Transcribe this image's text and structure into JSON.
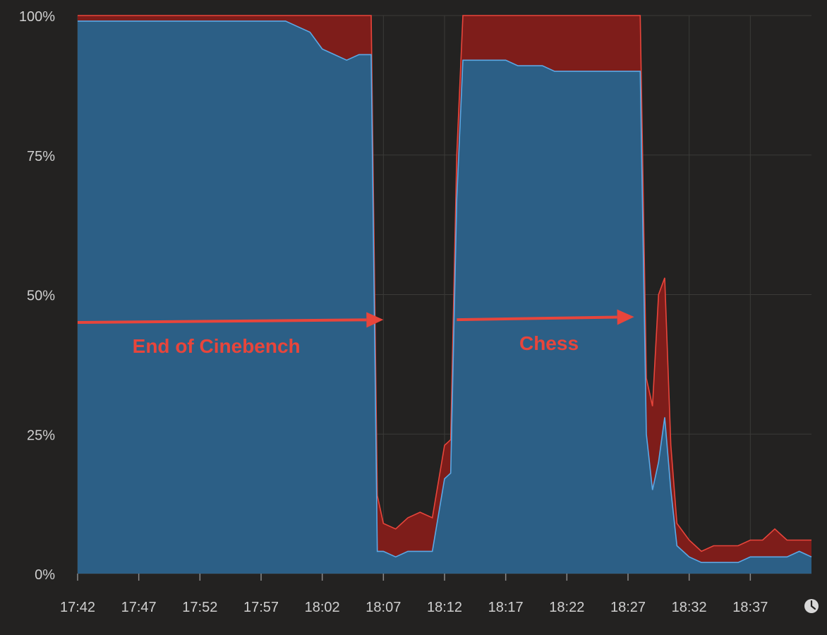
{
  "chart_data": {
    "type": "area",
    "title": "",
    "xlabel": "",
    "ylabel": "",
    "x_ticks": [
      "17:42",
      "17:47",
      "17:52",
      "17:57",
      "18:02",
      "18:07",
      "18:12",
      "18:17",
      "18:22",
      "18:27",
      "18:32",
      "18:37"
    ],
    "y_ticks": [
      "0%",
      "25%",
      "50%",
      "75%",
      "100%"
    ],
    "x_range": [
      "17:42",
      "18:42"
    ],
    "ylim": [
      0,
      100
    ],
    "grid": true,
    "stacked": true,
    "series": [
      {
        "color": "#2c5f86",
        "line_color": "#5aa9e6",
        "points": [
          [
            "17:42",
            99
          ],
          [
            "17:43",
            99
          ],
          [
            "17:44",
            99
          ],
          [
            "17:45",
            99
          ],
          [
            "17:46",
            99
          ],
          [
            "17:47",
            99
          ],
          [
            "17:48",
            99
          ],
          [
            "17:49",
            99
          ],
          [
            "17:50",
            99
          ],
          [
            "17:51",
            99
          ],
          [
            "17:52",
            99
          ],
          [
            "17:53",
            99
          ],
          [
            "17:54",
            99
          ],
          [
            "17:55",
            99
          ],
          [
            "17:56",
            99
          ],
          [
            "17:57",
            99
          ],
          [
            "17:58",
            99
          ],
          [
            "17:59",
            99
          ],
          [
            "18:00",
            98
          ],
          [
            "18:01",
            97
          ],
          [
            "18:02",
            94
          ],
          [
            "18:03",
            93
          ],
          [
            "18:04",
            92
          ],
          [
            "18:05",
            93
          ],
          [
            "18:06",
            93
          ],
          [
            "18:06.5",
            4
          ],
          [
            "18:07",
            4
          ],
          [
            "18:08",
            3
          ],
          [
            "18:09",
            4
          ],
          [
            "18:10",
            4
          ],
          [
            "18:11",
            4
          ],
          [
            "18:12",
            17
          ],
          [
            "18:12.5",
            18
          ],
          [
            "18:13",
            67
          ],
          [
            "18:13.5",
            92
          ],
          [
            "18:14",
            92
          ],
          [
            "18:15",
            92
          ],
          [
            "18:16",
            92
          ],
          [
            "18:17",
            92
          ],
          [
            "18:18",
            91
          ],
          [
            "18:19",
            91
          ],
          [
            "18:20",
            91
          ],
          [
            "18:21",
            90
          ],
          [
            "18:22",
            90
          ],
          [
            "18:23",
            90
          ],
          [
            "18:24",
            90
          ],
          [
            "18:25",
            90
          ],
          [
            "18:26",
            90
          ],
          [
            "18:27",
            90
          ],
          [
            "18:28",
            90
          ],
          [
            "18:28.5",
            25
          ],
          [
            "18:29",
            15
          ],
          [
            "18:29.5",
            20
          ],
          [
            "18:30",
            28
          ],
          [
            "18:30.5",
            15
          ],
          [
            "18:31",
            5
          ],
          [
            "18:32",
            3
          ],
          [
            "18:33",
            2
          ],
          [
            "18:34",
            2
          ],
          [
            "18:35",
            2
          ],
          [
            "18:36",
            2
          ],
          [
            "18:37",
            3
          ],
          [
            "18:38",
            3
          ],
          [
            "18:39",
            3
          ],
          [
            "18:40",
            3
          ],
          [
            "18:41",
            4
          ],
          [
            "18:42",
            3
          ]
        ]
      },
      {
        "color": "#7e1d1a",
        "line_color": "#e8453b",
        "points": [
          [
            "17:42",
            1
          ],
          [
            "17:43",
            1
          ],
          [
            "17:44",
            1
          ],
          [
            "17:45",
            1
          ],
          [
            "17:46",
            1
          ],
          [
            "17:47",
            1
          ],
          [
            "17:48",
            1
          ],
          [
            "17:49",
            1
          ],
          [
            "17:50",
            1
          ],
          [
            "17:51",
            1
          ],
          [
            "17:52",
            1
          ],
          [
            "17:53",
            1
          ],
          [
            "17:54",
            1
          ],
          [
            "17:55",
            1
          ],
          [
            "17:56",
            1
          ],
          [
            "17:57",
            1
          ],
          [
            "17:58",
            1
          ],
          [
            "17:59",
            1
          ],
          [
            "18:00",
            2
          ],
          [
            "18:01",
            3
          ],
          [
            "18:02",
            6
          ],
          [
            "18:03",
            7
          ],
          [
            "18:04",
            8
          ],
          [
            "18:05",
            7
          ],
          [
            "18:06",
            7
          ],
          [
            "18:06.5",
            10
          ],
          [
            "18:07",
            5
          ],
          [
            "18:08",
            5
          ],
          [
            "18:09",
            6
          ],
          [
            "18:10",
            7
          ],
          [
            "18:11",
            6
          ],
          [
            "18:12",
            6
          ],
          [
            "18:12.5",
            6
          ],
          [
            "18:13",
            8
          ],
          [
            "18:13.5",
            8
          ],
          [
            "18:14",
            8
          ],
          [
            "18:15",
            8
          ],
          [
            "18:16",
            8
          ],
          [
            "18:17",
            8
          ],
          [
            "18:18",
            9
          ],
          [
            "18:19",
            9
          ],
          [
            "18:20",
            9
          ],
          [
            "18:21",
            10
          ],
          [
            "18:22",
            10
          ],
          [
            "18:23",
            10
          ],
          [
            "18:24",
            10
          ],
          [
            "18:25",
            10
          ],
          [
            "18:26",
            10
          ],
          [
            "18:27",
            10
          ],
          [
            "18:28",
            10
          ],
          [
            "18:28.5",
            10
          ],
          [
            "18:29",
            15
          ],
          [
            "18:29.5",
            30
          ],
          [
            "18:30",
            25
          ],
          [
            "18:30.5",
            8
          ],
          [
            "18:31",
            4
          ],
          [
            "18:32",
            3
          ],
          [
            "18:33",
            2
          ],
          [
            "18:34",
            3
          ],
          [
            "18:35",
            3
          ],
          [
            "18:36",
            3
          ],
          [
            "18:37",
            3
          ],
          [
            "18:38",
            3
          ],
          [
            "18:39",
            5
          ],
          [
            "18:40",
            3
          ],
          [
            "18:41",
            2
          ],
          [
            "18:42",
            3
          ]
        ]
      }
    ],
    "annotations": [
      {
        "text": "End of Cinebench",
        "arrow_from": [
          "17:42",
          45
        ],
        "arrow_to": [
          "18:07",
          45.5
        ]
      },
      {
        "text": "Chess",
        "arrow_from": [
          "18:13",
          45.5
        ],
        "arrow_to": [
          "18:27.5",
          46
        ]
      }
    ]
  },
  "colors": {
    "background": "#232221",
    "grid": "#3b3a38",
    "tick_label": "#cfcfcf",
    "annotation": "#e8453b"
  },
  "icons": {
    "corner": "clock-icon"
  }
}
